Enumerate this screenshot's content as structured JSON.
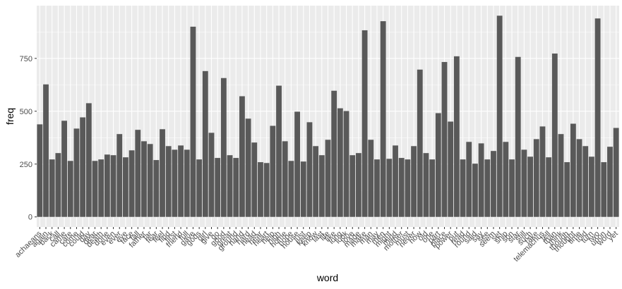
{
  "chart_data": {
    "type": "bar",
    "x_label": "word",
    "y_label": "freq",
    "categories": [
      "achaeans",
      "again",
      "back",
      "call",
      "came",
      "care",
      "come",
      "could",
      "day",
      "dear",
      "death",
      "done",
      "even",
      "ever",
      "eye",
      "face",
      "fall",
      "father",
      "far",
      "fear",
      "feel",
      "find",
      "first",
      "friend",
      "full",
      "gave",
      "gods",
      "girl",
      "give",
      "go",
      "good",
      "great",
      "ground",
      "hand",
      "hard",
      "head",
      "hear",
      "heart",
      "help",
      "high",
      "home",
      "hope",
      "house",
      "just",
      "keep",
      "know",
      "last",
      "life",
      "like",
      "long",
      "look",
      "love",
      "made",
      "make",
      "man",
      "may",
      "men",
      "might",
      "mind",
      "mother",
      "must",
      "never",
      "now",
      "old",
      "one",
      "part",
      "place",
      "power",
      "put",
      "read",
      "round",
      "said",
      "say",
      "see",
      "seem",
      "set",
      "ship",
      "son",
      "star",
      "still",
      "such",
      "take",
      "telemachus",
      "tell",
      "than",
      "think",
      "though",
      "thought",
      "time",
      "told",
      "turn",
      "two",
      "upon",
      "word",
      "yet"
    ],
    "values": [
      438,
      627,
      272,
      302,
      455,
      265,
      418,
      471,
      538,
      265,
      272,
      295,
      292,
      392,
      282,
      315,
      412,
      358,
      345,
      269,
      415,
      335,
      318,
      338,
      318,
      900,
      272,
      690,
      398,
      279,
      657,
      292,
      279,
      571,
      465,
      352,
      259,
      255,
      431,
      621,
      358,
      265,
      498,
      262,
      448,
      335,
      292,
      365,
      597,
      514,
      501,
      292,
      302,
      883,
      365,
      272,
      926,
      275,
      338,
      279,
      272,
      335,
      697,
      302,
      272,
      491,
      733,
      451,
      760,
      272,
      355,
      252,
      348,
      272,
      312,
      952,
      355,
      272,
      757,
      318,
      285,
      368,
      428,
      282,
      773,
      392,
      259,
      441,
      368,
      335,
      285,
      939,
      259,
      332,
      421
    ],
    "color": "#595959",
    "ylim": [
      -47.6,
      999.6
    ],
    "yticks": [
      0,
      250,
      500,
      750
    ],
    "grid": true
  }
}
